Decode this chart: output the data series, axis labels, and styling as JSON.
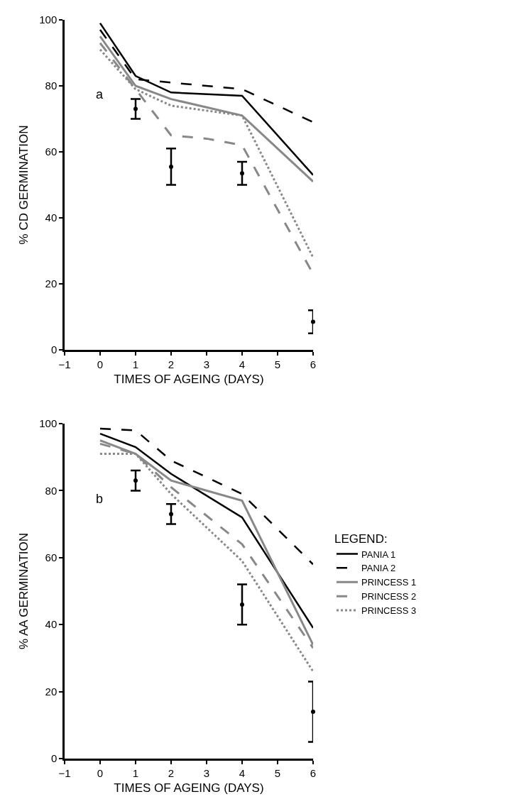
{
  "chart_data": [
    {
      "type": "line",
      "xlabel": "TIMES OF AGEING (DAYS)",
      "ylabel": "% CD GERMINATION",
      "annotations": [
        "a"
      ],
      "xlim": [
        -1,
        6
      ],
      "xticks": [
        -1,
        0,
        1,
        2,
        3,
        4,
        5,
        6
      ],
      "ylim": [
        0,
        100
      ],
      "yticks": [
        0,
        20,
        40,
        60,
        80,
        100
      ],
      "grid": false,
      "legend": false,
      "marker": "none",
      "series": [
        {
          "color": "#000000",
          "line_style": "solid",
          "x": [
            0,
            1,
            2,
            4,
            6
          ],
          "values": [
            99,
            83,
            78,
            77,
            53
          ]
        },
        {
          "color": "#000000",
          "line_style": "dashed",
          "x": [
            0,
            1,
            2,
            4,
            6
          ],
          "values": [
            97,
            82,
            81,
            79,
            69
          ]
        },
        {
          "color": "#888888",
          "line_style": "solid",
          "x": [
            0,
            1,
            2,
            4,
            6
          ],
          "values": [
            95,
            80,
            76,
            71,
            51
          ]
        },
        {
          "color": "#888888",
          "line_style": "dashed",
          "x": [
            0,
            1,
            2,
            3,
            4,
            6
          ],
          "values": [
            93,
            79,
            65,
            64,
            62,
            23
          ]
        },
        {
          "color": "#888888",
          "line_style": "dotted",
          "x": [
            0,
            1,
            2,
            4,
            6
          ],
          "values": [
            91,
            79,
            74,
            71,
            28
          ]
        },
        {
          "type": "scatter",
          "color": "#000000",
          "x": [
            1,
            2,
            4,
            6
          ],
          "values": [
            73,
            55.5,
            53.5,
            8.5
          ],
          "errors": [
            [
              70,
              76
            ],
            [
              50,
              61
            ],
            [
              50,
              57
            ],
            [
              5,
              12
            ]
          ]
        }
      ]
    },
    {
      "type": "line",
      "xlabel": "TIMES OF AGEING (DAYS)",
      "ylabel": "% AA GERMINATION",
      "annotations": [
        "b"
      ],
      "legend_title": "LEGEND:",
      "xlim": [
        -1,
        6
      ],
      "xticks": [
        -1,
        0,
        1,
        2,
        3,
        4,
        5,
        6
      ],
      "ylim": [
        0,
        100
      ],
      "yticks": [
        0,
        20,
        40,
        60,
        80,
        100
      ],
      "grid": false,
      "legend": "right",
      "marker": "none",
      "series": [
        {
          "name": "PANIA 1",
          "color": "#000000",
          "line_style": "solid",
          "x": [
            0,
            1,
            2,
            4,
            6
          ],
          "values": [
            97,
            93,
            85,
            72,
            39
          ]
        },
        {
          "name": "PANIA 2",
          "color": "#000000",
          "line_style": "dashed",
          "x": [
            0,
            1,
            2,
            4,
            6
          ],
          "values": [
            98.5,
            98,
            89,
            79,
            58
          ]
        },
        {
          "name": "PRINCESS 1",
          "color": "#888888",
          "line_style": "solid",
          "x": [
            0,
            1,
            2,
            4,
            6
          ],
          "values": [
            95,
            91,
            83,
            77,
            34
          ]
        },
        {
          "name": "PRINCESS 2",
          "color": "#888888",
          "line_style": "dashed",
          "x": [
            0,
            1,
            2,
            4,
            6
          ],
          "values": [
            94,
            91,
            81,
            64,
            33
          ]
        },
        {
          "name": "PRINCESS 3",
          "color": "#888888",
          "line_style": "dotted",
          "x": [
            0,
            1,
            2,
            4,
            6
          ],
          "values": [
            91,
            91,
            79,
            59,
            26
          ]
        },
        {
          "type": "scatter",
          "color": "#000000",
          "x": [
            1,
            2,
            4,
            6
          ],
          "values": [
            83,
            73,
            46,
            14
          ],
          "errors": [
            [
              80,
              86
            ],
            [
              70,
              76
            ],
            [
              40,
              52
            ],
            [
              5,
              23
            ]
          ]
        }
      ]
    }
  ]
}
